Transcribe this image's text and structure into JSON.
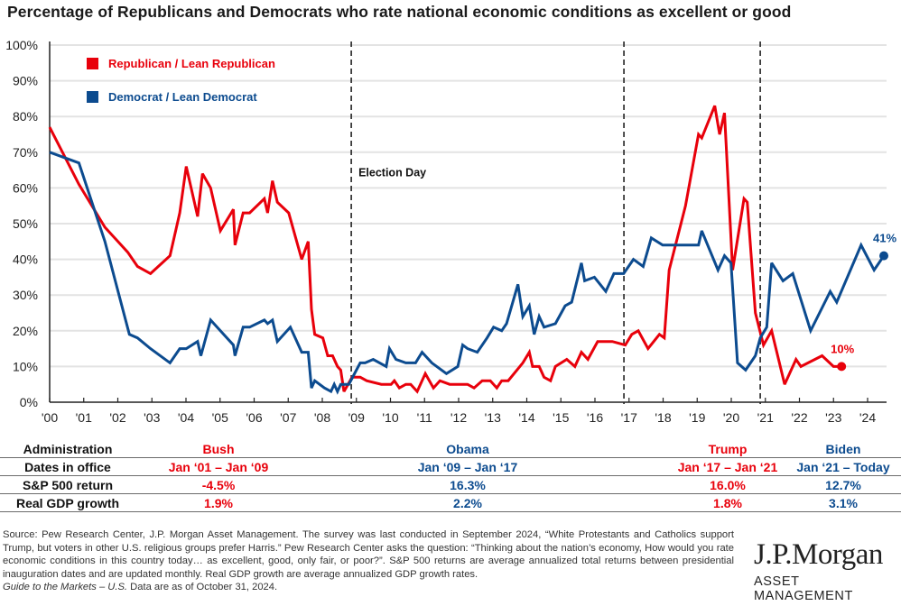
{
  "title": "Percentage of Republicans and Democrats who rate national economic conditions as excellent or good",
  "chart_data": {
    "type": "line",
    "title": "Percentage of Republicans and Democrats who rate national economic conditions as excellent or good",
    "xlabel": "",
    "ylabel": "",
    "ylim": [
      0,
      100
    ],
    "xlim": [
      2000,
      2024.8
    ],
    "yticks": [
      "0%",
      "10%",
      "20%",
      "30%",
      "40%",
      "50%",
      "60%",
      "70%",
      "80%",
      "90%",
      "100%"
    ],
    "xticks": [
      "'00",
      "'01",
      "'02",
      "'03",
      "'04",
      "'05",
      "'06",
      "'07",
      "'08",
      "'09",
      "'10",
      "'11",
      "'12",
      "'13",
      "'14",
      "'15",
      "'16",
      "'17",
      "'18",
      "'19",
      "'20",
      "'21",
      "'22",
      "'23",
      "'24"
    ],
    "grid": true,
    "legend_position": "top-left",
    "annotations": [
      {
        "text": "Election Day",
        "x": 2008.85
      }
    ],
    "election_lines": [
      2008.85,
      2016.85,
      2020.85
    ],
    "end_labels": [
      {
        "series": "Democrat / Lean Democrat",
        "text": "41%"
      },
      {
        "series": "Republican / Lean Republican",
        "text": "10%"
      }
    ],
    "series": [
      {
        "name": "Republican / Lean Republican",
        "color": "#e8000b",
        "points": [
          [
            2000.0,
            77
          ],
          [
            2000.9,
            61
          ],
          [
            2001.7,
            49
          ],
          [
            2002.4,
            42
          ],
          [
            2002.7,
            38
          ],
          [
            2003.1,
            36
          ],
          [
            2003.7,
            41
          ],
          [
            2004.0,
            53
          ],
          [
            2004.2,
            66
          ],
          [
            2004.55,
            52
          ],
          [
            2004.7,
            64
          ],
          [
            2004.95,
            60
          ],
          [
            2005.25,
            48
          ],
          [
            2005.65,
            54
          ],
          [
            2005.7,
            44
          ],
          [
            2005.95,
            53
          ],
          [
            2006.15,
            53
          ],
          [
            2006.6,
            57
          ],
          [
            2006.7,
            53
          ],
          [
            2006.85,
            62
          ],
          [
            2007.0,
            56
          ],
          [
            2007.35,
            53
          ],
          [
            2007.75,
            40
          ],
          [
            2007.95,
            45
          ],
          [
            2008.05,
            26
          ],
          [
            2008.15,
            19
          ],
          [
            2008.4,
            18
          ],
          [
            2008.55,
            13
          ],
          [
            2008.7,
            13
          ],
          [
            2008.85,
            10
          ],
          [
            2008.95,
            9
          ],
          [
            2009.05,
            3
          ],
          [
            2009.3,
            7
          ],
          [
            2009.55,
            7
          ],
          [
            2009.75,
            6
          ],
          [
            2010.2,
            5
          ],
          [
            2010.5,
            5
          ],
          [
            2010.6,
            6
          ],
          [
            2010.75,
            4
          ],
          [
            2010.95,
            5
          ],
          [
            2011.1,
            5
          ],
          [
            2011.3,
            3
          ],
          [
            2011.55,
            8
          ],
          [
            2011.8,
            4
          ],
          [
            2012.0,
            6
          ],
          [
            2012.3,
            5
          ],
          [
            2012.85,
            5
          ],
          [
            2013.05,
            4
          ],
          [
            2013.3,
            6
          ],
          [
            2013.55,
            6
          ],
          [
            2013.75,
            4
          ],
          [
            2013.9,
            6
          ],
          [
            2014.1,
            6
          ],
          [
            2014.55,
            11
          ],
          [
            2014.75,
            14
          ],
          [
            2014.85,
            10
          ],
          [
            2015.05,
            10
          ],
          [
            2015.2,
            7
          ],
          [
            2015.4,
            6
          ],
          [
            2015.55,
            10
          ],
          [
            2015.9,
            12
          ],
          [
            2016.15,
            10
          ],
          [
            2016.35,
            14
          ],
          [
            2016.55,
            12
          ],
          [
            2016.85,
            17
          ],
          [
            2017.0,
            17
          ],
          [
            2017.3,
            17
          ],
          [
            2017.7,
            16
          ],
          [
            2017.9,
            19
          ],
          [
            2018.1,
            20
          ],
          [
            2018.4,
            15
          ],
          [
            2018.75,
            19
          ],
          [
            2018.9,
            18
          ],
          [
            2019.05,
            37
          ],
          [
            2019.55,
            55
          ],
          [
            2019.95,
            75
          ],
          [
            2020.05,
            74
          ],
          [
            2020.45,
            83
          ],
          [
            2020.6,
            75
          ],
          [
            2020.75,
            81
          ],
          [
            2021.0,
            37
          ],
          [
            2021.35,
            57
          ],
          [
            2021.45,
            56
          ],
          [
            2021.7,
            25
          ],
          [
            2021.95,
            16
          ],
          [
            2022.2,
            20
          ],
          [
            2022.6,
            5
          ],
          [
            2022.95,
            12
          ],
          [
            2023.1,
            10
          ],
          [
            2023.75,
            13
          ],
          [
            2024.1,
            10
          ],
          [
            2024.35,
            10
          ]
        ]
      },
      {
        "name": "Democrat / Lean Democrat",
        "color": "#0c4b8f",
        "points": [
          [
            2000.0,
            70
          ],
          [
            2000.9,
            67
          ],
          [
            2001.7,
            45
          ],
          [
            2002.45,
            19
          ],
          [
            2002.7,
            18
          ],
          [
            2003.1,
            15
          ],
          [
            2003.7,
            11
          ],
          [
            2004.0,
            15
          ],
          [
            2004.2,
            15
          ],
          [
            2004.55,
            17
          ],
          [
            2004.65,
            13
          ],
          [
            2004.95,
            23
          ],
          [
            2005.25,
            20
          ],
          [
            2005.65,
            16
          ],
          [
            2005.7,
            13
          ],
          [
            2005.95,
            21
          ],
          [
            2006.15,
            21
          ],
          [
            2006.6,
            23
          ],
          [
            2006.7,
            22
          ],
          [
            2006.85,
            23
          ],
          [
            2007.0,
            17
          ],
          [
            2007.4,
            21
          ],
          [
            2007.75,
            14
          ],
          [
            2007.95,
            14
          ],
          [
            2008.05,
            4
          ],
          [
            2008.15,
            6
          ],
          [
            2008.45,
            4
          ],
          [
            2008.65,
            3
          ],
          [
            2008.75,
            5
          ],
          [
            2008.85,
            3
          ],
          [
            2008.95,
            5
          ],
          [
            2009.2,
            5
          ],
          [
            2009.55,
            11
          ],
          [
            2009.7,
            11
          ],
          [
            2009.95,
            12
          ],
          [
            2010.35,
            10
          ],
          [
            2010.45,
            15
          ],
          [
            2010.65,
            12
          ],
          [
            2010.95,
            11
          ],
          [
            2011.25,
            11
          ],
          [
            2011.45,
            14
          ],
          [
            2011.75,
            11
          ],
          [
            2012.2,
            8
          ],
          [
            2012.55,
            10
          ],
          [
            2012.7,
            16
          ],
          [
            2012.85,
            15
          ],
          [
            2013.15,
            14
          ],
          [
            2013.45,
            18
          ],
          [
            2013.65,
            21
          ],
          [
            2013.9,
            20
          ],
          [
            2014.05,
            22
          ],
          [
            2014.4,
            33
          ],
          [
            2014.55,
            24
          ],
          [
            2014.75,
            27
          ],
          [
            2014.9,
            19
          ],
          [
            2015.05,
            24
          ],
          [
            2015.2,
            21
          ],
          [
            2015.55,
            22
          ],
          [
            2015.85,
            27
          ],
          [
            2016.05,
            28
          ],
          [
            2016.35,
            39
          ],
          [
            2016.45,
            34
          ],
          [
            2016.75,
            35
          ],
          [
            2017.1,
            31
          ],
          [
            2017.35,
            36
          ],
          [
            2017.65,
            36
          ],
          [
            2017.95,
            40
          ],
          [
            2018.25,
            38
          ],
          [
            2018.5,
            46
          ],
          [
            2018.85,
            44
          ],
          [
            2019.45,
            44
          ],
          [
            2019.95,
            44
          ],
          [
            2020.05,
            48
          ],
          [
            2020.55,
            37
          ],
          [
            2020.75,
            41
          ],
          [
            2020.95,
            39
          ],
          [
            2021.15,
            11
          ],
          [
            2021.4,
            9
          ],
          [
            2021.7,
            13
          ],
          [
            2021.85,
            18
          ],
          [
            2022.05,
            21
          ],
          [
            2022.2,
            39
          ],
          [
            2022.55,
            34
          ],
          [
            2022.85,
            36
          ],
          [
            2023.4,
            20
          ],
          [
            2024.0,
            31
          ],
          [
            2024.2,
            28
          ],
          [
            2024.95,
            44
          ],
          [
            2025.35,
            37
          ],
          [
            2025.65,
            41
          ]
        ]
      }
    ],
    "table": {
      "columns": [
        "Administration",
        "Bush",
        "Obama",
        "Trump",
        "Biden"
      ],
      "rows": [
        {
          "label": "Dates in office",
          "values": [
            "Jan ‘01 – Jan ‘09",
            "Jan ‘09 – Jan ‘17",
            "Jan ‘17 – Jan ‘21",
            "Jan ‘21 – Today"
          ]
        },
        {
          "label": "S&P 500 return",
          "values": [
            "-4.5%",
            "16.3%",
            "16.0%",
            "12.7%"
          ]
        },
        {
          "label": "Real GDP growth",
          "values": [
            "1.9%",
            "2.2%",
            "1.8%",
            "3.1%"
          ]
        }
      ]
    }
  },
  "legend": [
    {
      "label": "Republican / Lean Republican",
      "color": "#e8000b"
    },
    {
      "label": "Democrat / Lean Democrat",
      "color": "#0c4b8f"
    }
  ],
  "footnote": {
    "source": "Source: Pew Research Center, J.P. Morgan Asset Management. The survey was last conducted in September 2024, “White Protestants and Catholics support Trump, but voters in other U.S. religious groups prefer Harris.” Pew Research Center asks the question: “Thinking about the nation’s economy, How would you rate economic conditions in this country today… as excellent, good, only fair, or poor?”. S&P 500 returns are average annualized total returns between presidential inauguration dates and are updated monthly. Real GDP growth are average annualized GDP growth rates.",
    "guide": "Guide to the Markets – U.S.",
    "asof": " Data are as of October 31, 2024."
  },
  "logo": {
    "name": "J.P.Morgan",
    "sub": "ASSET MANAGEMENT"
  }
}
